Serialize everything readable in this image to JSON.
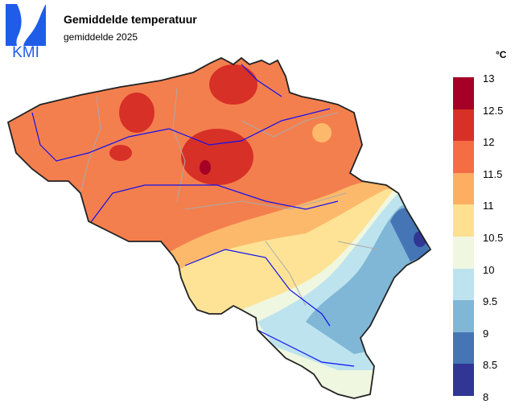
{
  "logo": {
    "text": "KMI",
    "color": "#1f5ce8"
  },
  "header": {
    "title": "Gemiddelde temperatuur",
    "subtitle": "gemiddelde 2025"
  },
  "legend": {
    "unit": "°C",
    "labels": [
      "13",
      "12.5",
      "12",
      "11.5",
      "11",
      "10.5",
      "10",
      "9.5",
      "9",
      "8.5",
      "8"
    ],
    "colors": [
      "#a50026",
      "#d73027",
      "#f46d43",
      "#fdae61",
      "#fee090",
      "#eff7e0",
      "#bde3ee",
      "#80b6d6",
      "#4575b4",
      "#313695"
    ]
  }
}
